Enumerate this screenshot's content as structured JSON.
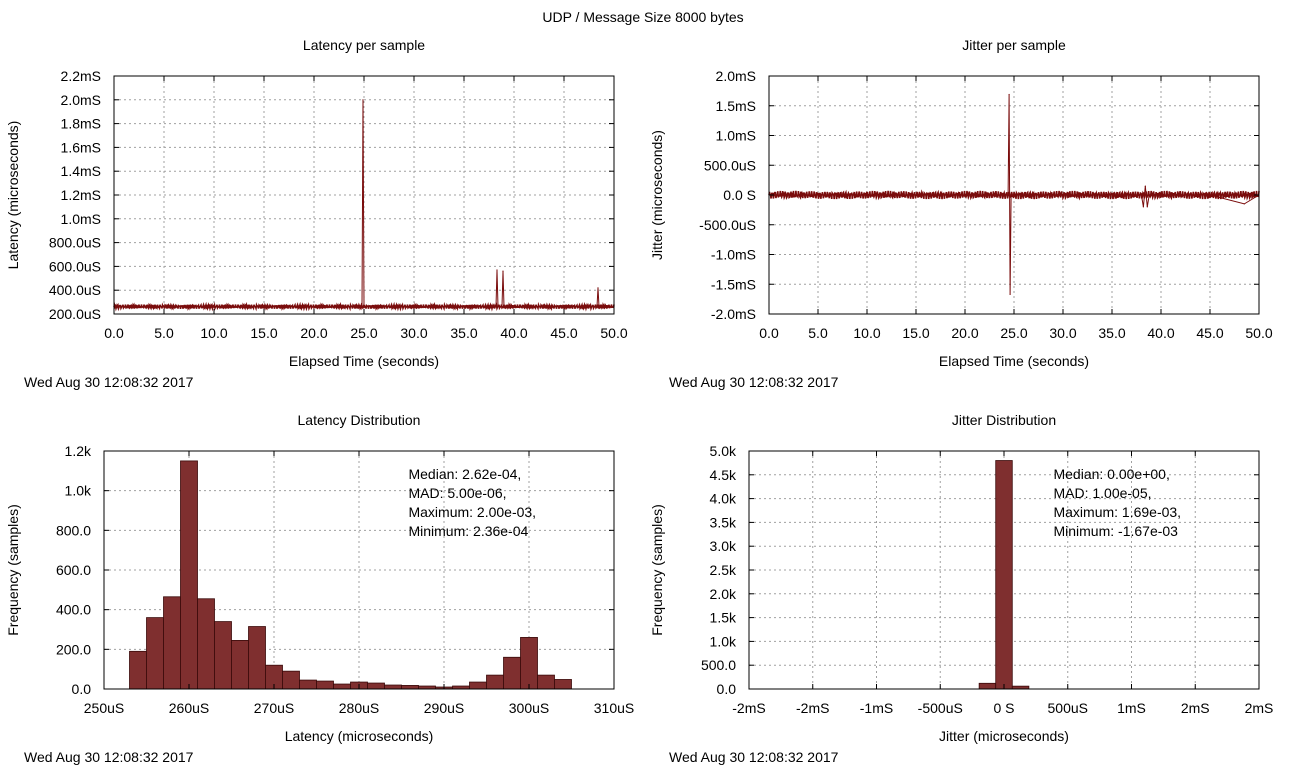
{
  "figure_title": "UDP / Message Size 8000 bytes",
  "chart_data": [
    {
      "id": "latency_per_sample",
      "type": "line",
      "title": "Latency per sample",
      "xlabel": "Elapsed Time (seconds)",
      "ylabel": "Latency (microseconds)",
      "xlim": [
        0,
        50
      ],
      "ylim": [
        200,
        2200
      ],
      "x_ticks": [
        0,
        5,
        10,
        15,
        20,
        25,
        30,
        35,
        40,
        45,
        50
      ],
      "x_tick_labels": [
        "0.0",
        "5.0",
        "10.0",
        "15.0",
        "20.0",
        "25.0",
        "30.0",
        "35.0",
        "40.0",
        "45.0",
        "50.0"
      ],
      "y_ticks": [
        200,
        400,
        600,
        800,
        1000,
        1200,
        1400,
        1600,
        1800,
        2000,
        2200
      ],
      "y_tick_labels": [
        "200.0uS",
        "400.0uS",
        "600.0uS",
        "800.0uS",
        "1.0mS",
        "1.2mS",
        "1.4mS",
        "1.6mS",
        "1.8mS",
        "2.0mS",
        "2.2mS"
      ],
      "grid": true,
      "color": "#7a0c0c",
      "series": [
        {
          "x": [
            0,
            5,
            10,
            15,
            20,
            24.8,
            24.9,
            25.0,
            30,
            38.2,
            38.3,
            38.4,
            38.8,
            38.9,
            39.0,
            45,
            48.3,
            48.4,
            48.5,
            50
          ],
          "values": [
            262,
            262,
            263,
            262,
            262,
            262,
            2000,
            262,
            262,
            262,
            570,
            262,
            262,
            560,
            262,
            262,
            262,
            420,
            262,
            262
          ]
        }
      ],
      "footer": "Wed Aug 30 12:08:32 2017"
    },
    {
      "id": "jitter_per_sample",
      "type": "line",
      "title": "Jitter per sample",
      "xlabel": "Elapsed Time (seconds)",
      "ylabel": "Jitter (microseconds)",
      "xlim": [
        0,
        50
      ],
      "ylim": [
        -2000,
        2000
      ],
      "x_ticks": [
        0,
        5,
        10,
        15,
        20,
        25,
        30,
        35,
        40,
        45,
        50
      ],
      "x_tick_labels": [
        "0.0",
        "5.0",
        "10.0",
        "15.0",
        "20.0",
        "25.0",
        "30.0",
        "35.0",
        "40.0",
        "45.0",
        "50.0"
      ],
      "y_ticks": [
        -2000,
        -1500,
        -1000,
        -500,
        0,
        500,
        1000,
        1500,
        2000
      ],
      "y_tick_labels": [
        "-2.0mS",
        "-1.5mS",
        "-1.0mS",
        "-500.0uS",
        "0.0 S",
        "500.0uS",
        "1.0mS",
        "1.5mS",
        "2.0mS"
      ],
      "grid": true,
      "color": "#7a0c0c",
      "series": [
        {
          "x": [
            0,
            10,
            24.4,
            24.5,
            24.6,
            24.7,
            30,
            38.0,
            38.2,
            38.4,
            38.6,
            38.8,
            45,
            48.5,
            50
          ],
          "values": [
            0,
            0,
            0,
            1690,
            -1670,
            0,
            0,
            0,
            -200,
            150,
            -200,
            0,
            0,
            -150,
            0
          ]
        }
      ],
      "footer": "Wed Aug 30 12:08:32 2017"
    },
    {
      "id": "latency_distribution",
      "type": "bar",
      "title": "Latency Distribution",
      "xlabel": "Latency (microseconds)",
      "ylabel": "Frequency (samples)",
      "xlim": [
        250,
        310
      ],
      "ylim": [
        0,
        1200
      ],
      "x_ticks": [
        250,
        260,
        270,
        280,
        290,
        300,
        310
      ],
      "x_tick_labels": [
        "250uS",
        "260uS",
        "270uS",
        "280uS",
        "290uS",
        "300uS",
        "310uS"
      ],
      "y_ticks": [
        0,
        200,
        400,
        600,
        800,
        1000,
        1200
      ],
      "y_tick_labels": [
        "0.0",
        "200.0",
        "400.0",
        "600.0",
        "800.0",
        "1.0k",
        "1.2k"
      ],
      "grid": true,
      "bar_color": "#7f2f2f",
      "bin_width": 2,
      "bin_starts": [
        253,
        255,
        257,
        259,
        261,
        263,
        265,
        267,
        269,
        271,
        273,
        275,
        277,
        279,
        281,
        283,
        285,
        287,
        289,
        291,
        293,
        295,
        297,
        299,
        301,
        303,
        305,
        307,
        309
      ],
      "values": [
        190,
        360,
        465,
        1150,
        455,
        340,
        245,
        315,
        120,
        90,
        45,
        40,
        25,
        35,
        30,
        20,
        18,
        15,
        10,
        15,
        35,
        70,
        160,
        260,
        70,
        48,
        0,
        0,
        0
      ],
      "annotations": [
        "Median: 2.62e-04,",
        "MAD: 5.00e-06,",
        "Maximum: 2.00e-03,",
        "Minimum: 2.36e-04"
      ],
      "footer": "Wed Aug 30 12:08:32 2017"
    },
    {
      "id": "jitter_distribution",
      "type": "bar",
      "title": "Jitter Distribution",
      "xlabel": "Jitter (microseconds)",
      "ylabel": "Frequency (samples)",
      "xlim": [
        -2000,
        2000
      ],
      "ylim": [
        0,
        5000
      ],
      "x_ticks": [
        -2000,
        -1500,
        -1000,
        -500,
        0,
        500,
        1000,
        1500,
        2000
      ],
      "x_tick_labels": [
        "-2mS",
        "-2mS",
        "-1mS",
        "-500uS",
        "0 S",
        "500uS",
        "1mS",
        "2mS",
        "2mS"
      ],
      "y_ticks": [
        0,
        500,
        1000,
        1500,
        2000,
        2500,
        3000,
        3500,
        4000,
        4500,
        5000
      ],
      "y_tick_labels": [
        "0.0",
        "500.0",
        "1.0k",
        "1.5k",
        "2.0k",
        "2.5k",
        "3.0k",
        "3.5k",
        "4.0k",
        "4.5k",
        "5.0k"
      ],
      "grid": true,
      "bar_color": "#7f2f2f",
      "bin_width": 130,
      "bin_starts": [
        -195,
        -65,
        65
      ],
      "values": [
        120,
        4800,
        60
      ],
      "annotations": [
        "Median: 0.00e+00,",
        "MAD: 1.00e-05,",
        "Maximum: 1.69e-03,",
        "Minimum: -1.67e-03"
      ],
      "footer": "Wed Aug 30 12:08:32 2017"
    }
  ]
}
